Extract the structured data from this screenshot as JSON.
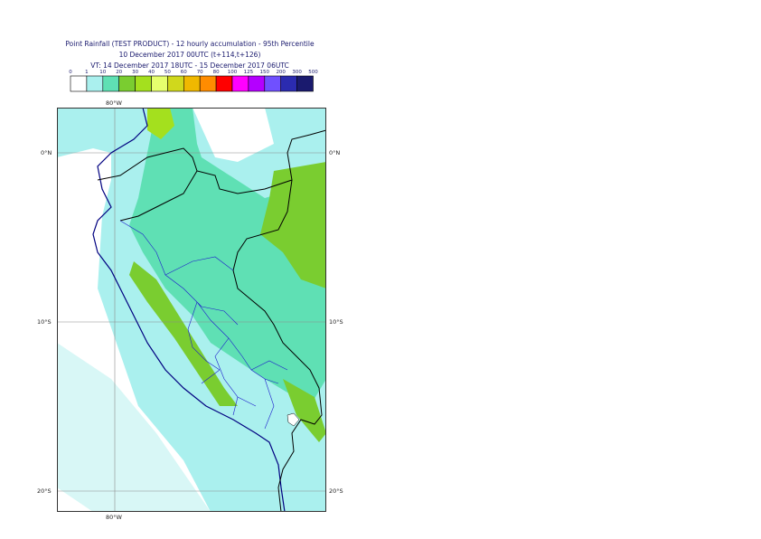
{
  "title": {
    "line1": "Point Rainfall (TEST PRODUCT) - 12 hourly accumulation - 95th Percentile",
    "line2": "10 December 2017 00UTC (t+114,t+126)",
    "line3": "VT: 14 December 2017 18UTC - 15 December 2017 06UTC"
  },
  "legend": {
    "thresholds": [
      "0",
      "1",
      "10",
      "20",
      "30",
      "40",
      "50",
      "60",
      "70",
      "80",
      "100",
      "125",
      "150",
      "200",
      "300",
      "500"
    ],
    "colors": [
      "#ffffff",
      "#aaf0ee",
      "#5fe0b4",
      "#7acd30",
      "#a4e01e",
      "#e6ff6e",
      "#d0d81c",
      "#f0b800",
      "#ff8c00",
      "#ff0000",
      "#ff00ff",
      "#b400ff",
      "#7050ff",
      "#2b2bb0",
      "#1a1a6e"
    ]
  },
  "map": {
    "lon_top_label": "80°W",
    "lon_bottom_label": "80°W",
    "lat_labels_left": [
      "0°N",
      "10°S",
      "20°S"
    ],
    "lat_labels_right": [
      "0°N",
      "10°S",
      "20°S"
    ]
  }
}
